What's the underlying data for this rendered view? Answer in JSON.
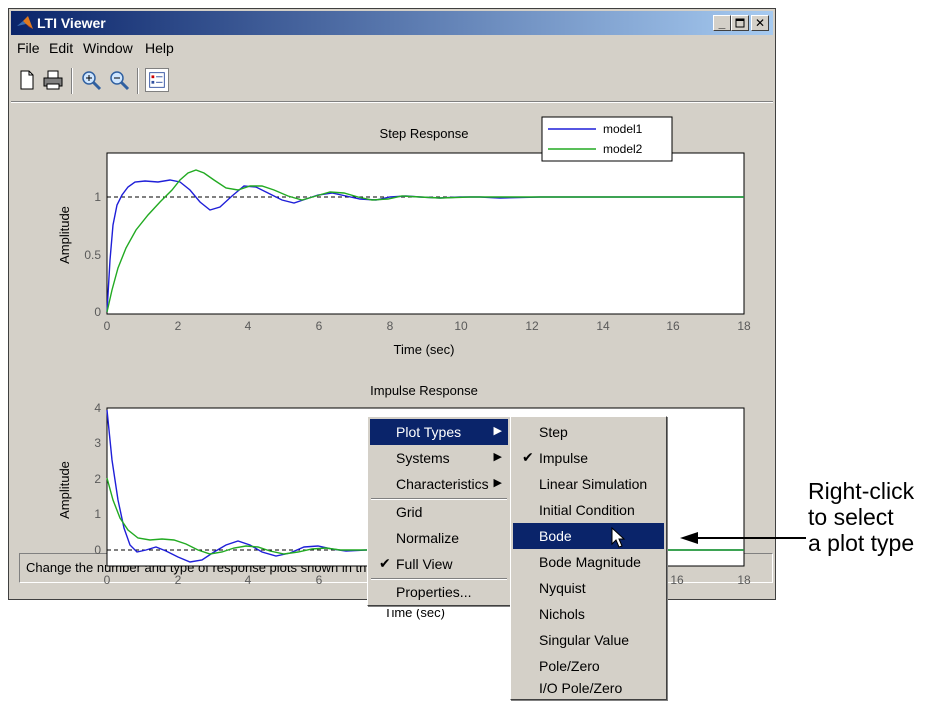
{
  "window": {
    "title": "LTI Viewer",
    "min": "_",
    "max": "□",
    "close": "✕"
  },
  "menubar": [
    "File",
    "Edit",
    "Window",
    "Help"
  ],
  "toolbar": {
    "icons": [
      "new-icon",
      "print-icon",
      "zoom-in-icon",
      "zoom-out-icon",
      "legend-toggle-icon"
    ]
  },
  "plot1": {
    "title": "Step Response",
    "ylabel": "Amplitude",
    "xlabel": "Time (sec)",
    "yticks": [
      "0",
      "0.5",
      "1"
    ],
    "xticks": [
      "0",
      "2",
      "4",
      "6",
      "8",
      "10",
      "12",
      "14",
      "16",
      "18"
    ],
    "legend": [
      "model1",
      "model2"
    ]
  },
  "plot2": {
    "title": "Impulse Response",
    "ylabel": "Amplitude",
    "xlabel": "Time (sec)",
    "yticks": [
      "0",
      "1",
      "2",
      "3",
      "4"
    ],
    "xticks": [
      "0",
      "2",
      "4",
      "6",
      "16",
      "18"
    ]
  },
  "context_menu": {
    "items": [
      "Plot Types",
      "Systems",
      "Characteristics",
      "Grid",
      "Normalize",
      "Full View",
      "Properties..."
    ],
    "checked": "Full View",
    "highlighted": "Plot Types"
  },
  "submenu": {
    "items": [
      "Step",
      "Impulse",
      "Linear Simulation",
      "Initial Condition",
      "Bode",
      "Bode Magnitude",
      "Nyquist",
      "Nichols",
      "Singular Value",
      "Pole/Zero",
      "I/O Pole/Zero"
    ],
    "checked": "Impulse",
    "highlighted": "Bode"
  },
  "status": "Change the number and type of response plots shown in this LTI Viewer.",
  "annotation": [
    "Right-click",
    "to select",
    "a plot type"
  ],
  "colors": {
    "model1": "#1f1fd8",
    "model2": "#22aa22",
    "highlight": "#0a246a",
    "face": "#d4d0c8"
  }
}
